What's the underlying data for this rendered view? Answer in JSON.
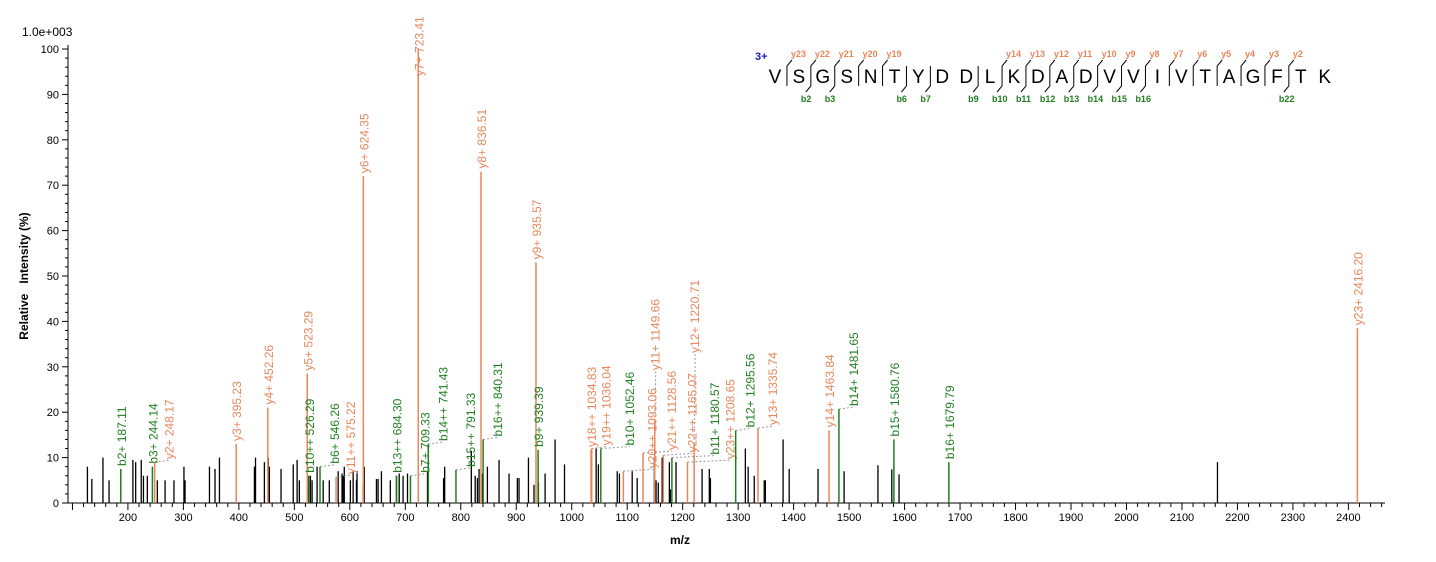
{
  "chart_data": {
    "type": "bar",
    "title": "",
    "scale_label": "1.0e+003",
    "xlabel": "m/z",
    "ylabel": "Relative   Intensity (%)",
    "xlim": [
      92,
      2466
    ],
    "ylim": [
      0,
      100
    ],
    "x_ticks": [
      200,
      300,
      400,
      500,
      600,
      700,
      800,
      900,
      1000,
      1100,
      1200,
      1300,
      1400,
      1500,
      1600,
      1700,
      1800,
      1900,
      2000,
      2100,
      2200,
      2300,
      2400
    ],
    "y_ticks": [
      0,
      10,
      20,
      30,
      40,
      50,
      60,
      70,
      80,
      90,
      100
    ],
    "grid": false,
    "colors": {
      "y_ion": "#e8865a",
      "b_ion": "#1f7f1f",
      "unassigned": "#000000",
      "charge": "#1a1acc"
    },
    "annotated_peaks": [
      {
        "mz": 187.11,
        "intensity": 7.5,
        "type": "b",
        "label": "b2+ 187.11"
      },
      {
        "mz": 244.14,
        "intensity": 8,
        "type": "b",
        "label": "b3+ 244.14"
      },
      {
        "mz": 248.17,
        "intensity": 9,
        "type": "y",
        "label": "y2+ 248.17"
      },
      {
        "mz": 395.23,
        "intensity": 13,
        "type": "y",
        "label": "y3+ 395.23"
      },
      {
        "mz": 452.26,
        "intensity": 21,
        "type": "y",
        "label": "y4+ 452.26"
      },
      {
        "mz": 523.29,
        "intensity": 28.5,
        "type": "y",
        "label": "y5+ 523.29"
      },
      {
        "mz": 526.29,
        "intensity": 6,
        "type": "b",
        "label": "b10++ 526.29"
      },
      {
        "mz": 546.26,
        "intensity": 8,
        "type": "b",
        "label": "b6+ 546.26"
      },
      {
        "mz": 575.22,
        "intensity": 5.7,
        "type": "y",
        "label": "y11++ 575.22"
      },
      {
        "mz": 624.35,
        "intensity": 72,
        "type": "y",
        "label": "y6+ 624.35"
      },
      {
        "mz": 684.3,
        "intensity": 6,
        "type": "b",
        "label": "b13++ 684.30"
      },
      {
        "mz": 709.33,
        "intensity": 6,
        "type": "b",
        "label": "b7+ 709.33"
      },
      {
        "mz": 723.41,
        "intensity": 100,
        "type": "y",
        "label": "y7+ 723.41"
      },
      {
        "mz": 741.43,
        "intensity": 13,
        "type": "b",
        "label": "b14++ 741.43"
      },
      {
        "mz": 791.33,
        "intensity": 7.3,
        "type": "b",
        "label": "b15++ 791.33"
      },
      {
        "mz": 836.51,
        "intensity": 73,
        "type": "y",
        "label": "y8+ 836.51"
      },
      {
        "mz": 840.31,
        "intensity": 14,
        "type": "b",
        "label": "b16++ 840.31"
      },
      {
        "mz": 935.57,
        "intensity": 53,
        "type": "y",
        "label": "y9+ 935.57"
      },
      {
        "mz": 939.39,
        "intensity": 11.7,
        "type": "b",
        "label": "b9+ 939.39"
      },
      {
        "mz": 1034.83,
        "intensity": 11.7,
        "type": "y",
        "label": "y18++ 1034.83"
      },
      {
        "mz": 1036.04,
        "intensity": 12,
        "type": "y",
        "label": "y19++ 1036.04"
      },
      {
        "mz": 1052.46,
        "intensity": 12,
        "type": "b",
        "label": "b10+ 1052.46"
      },
      {
        "mz": 1093.06,
        "intensity": 7,
        "type": "y",
        "label": "y20++ 1093.06"
      },
      {
        "mz": 1128.56,
        "intensity": 11,
        "type": "y",
        "label": "y21++ 1128.56"
      },
      {
        "mz": 1149.66,
        "intensity": 18,
        "type": "y",
        "label": "y11+ 1149.66"
      },
      {
        "mz": 1165.07,
        "intensity": 10.5,
        "type": "y",
        "label": "y22++ 1165.07"
      },
      {
        "mz": 1180.57,
        "intensity": 10,
        "type": "b",
        "label": "b11+ 1180.57"
      },
      {
        "mz": 1208.65,
        "intensity": 9,
        "type": "y",
        "label": "y23++ 1208.65"
      },
      {
        "mz": 1220.71,
        "intensity": 13,
        "type": "y",
        "label": "y12+ 1220.71"
      },
      {
        "mz": 1295.56,
        "intensity": 16,
        "type": "b",
        "label": "b12+ 1295.56"
      },
      {
        "mz": 1335.74,
        "intensity": 16.5,
        "type": "y",
        "label": "y13+ 1335.74"
      },
      {
        "mz": 1463.84,
        "intensity": 16,
        "type": "y",
        "label": "y14+ 1463.84"
      },
      {
        "mz": 1481.65,
        "intensity": 20.7,
        "type": "b",
        "label": "b14+ 1481.65"
      },
      {
        "mz": 1580.76,
        "intensity": 14,
        "type": "b",
        "label": "b15+ 1580.76"
      },
      {
        "mz": 1679.79,
        "intensity": 9,
        "type": "b",
        "label": "b16+ 1679.79"
      },
      {
        "mz": 2416.2,
        "intensity": 38.5,
        "type": "y",
        "label": "y23+ 2416.20"
      }
    ],
    "unassigned_peaks": [
      [
        127,
        8
      ],
      [
        135,
        5.3
      ],
      [
        155,
        10
      ],
      [
        166,
        5
      ],
      [
        209,
        9.5
      ],
      [
        214,
        9
      ],
      [
        224,
        9.5
      ],
      [
        228,
        6
      ],
      [
        235,
        6
      ],
      [
        253,
        5
      ],
      [
        267,
        5
      ],
      [
        283,
        5
      ],
      [
        301,
        8
      ],
      [
        303,
        5
      ],
      [
        347,
        8
      ],
      [
        357,
        7.5
      ],
      [
        365,
        10
      ],
      [
        428,
        8
      ],
      [
        430,
        10
      ],
      [
        446,
        9
      ],
      [
        453,
        10
      ],
      [
        455,
        8
      ],
      [
        476,
        7.5
      ],
      [
        498,
        8.5
      ],
      [
        505,
        9.5
      ],
      [
        509,
        5
      ],
      [
        525,
        6
      ],
      [
        529,
        6
      ],
      [
        532,
        5
      ],
      [
        541,
        8
      ],
      [
        552,
        5
      ],
      [
        563,
        5
      ],
      [
        579,
        7
      ],
      [
        586,
        6.5
      ],
      [
        588,
        6
      ],
      [
        590,
        8
      ],
      [
        601,
        5
      ],
      [
        606,
        7
      ],
      [
        612,
        5
      ],
      [
        613,
        7
      ],
      [
        624,
        4
      ],
      [
        626,
        8
      ],
      [
        648,
        5.3
      ],
      [
        651,
        5.3
      ],
      [
        657,
        7
      ],
      [
        673,
        5
      ],
      [
        684,
        6
      ],
      [
        689,
        6.5
      ],
      [
        696,
        6
      ],
      [
        704,
        6.5
      ],
      [
        740,
        7
      ],
      [
        769,
        5.5
      ],
      [
        771,
        8
      ],
      [
        819,
        11.5
      ],
      [
        826,
        6
      ],
      [
        830,
        5.5
      ],
      [
        833,
        7.5
      ],
      [
        839,
        6.5
      ],
      [
        848,
        8
      ],
      [
        869,
        9.5
      ],
      [
        887,
        6.5
      ],
      [
        902,
        5.5
      ],
      [
        905,
        5.5
      ],
      [
        922,
        10
      ],
      [
        932,
        4
      ],
      [
        940,
        4.5
      ],
      [
        952,
        6.5
      ],
      [
        970,
        14
      ],
      [
        987,
        8.5
      ],
      [
        1044,
        12
      ],
      [
        1048,
        8.5
      ],
      [
        1082,
        7
      ],
      [
        1086,
        6.5
      ],
      [
        1109,
        7
      ],
      [
        1118,
        5.5
      ],
      [
        1149,
        10
      ],
      [
        1152,
        5
      ],
      [
        1156,
        4.5
      ],
      [
        1163,
        10
      ],
      [
        1176,
        9
      ],
      [
        1178,
        3
      ],
      [
        1188,
        9
      ],
      [
        1235,
        7.5
      ],
      [
        1248,
        7.5
      ],
      [
        1250,
        5.5
      ],
      [
        1313,
        12
      ],
      [
        1318,
        8
      ],
      [
        1329,
        6
      ],
      [
        1347,
        5
      ],
      [
        1349,
        5
      ],
      [
        1381,
        14
      ],
      [
        1392,
        7.5
      ],
      [
        1444,
        7.5
      ],
      [
        1491,
        7
      ],
      [
        1552,
        8.3
      ],
      [
        1577,
        7.4
      ],
      [
        1590,
        6.3
      ],
      [
        2164,
        9
      ]
    ]
  },
  "sequence": {
    "charge": "3+",
    "residues": [
      "V",
      "S",
      "G",
      "S",
      "N",
      "T",
      "Y",
      "D",
      "D",
      "L",
      "K",
      "D",
      "A",
      "D",
      "V",
      "V",
      "I",
      "V",
      "T",
      "A",
      "G",
      "F",
      "T",
      "K"
    ],
    "cleavages": [
      {
        "after": 1,
        "y": "y23",
        "b": ""
      },
      {
        "after": 2,
        "y": "y22",
        "b": "b2"
      },
      {
        "after": 3,
        "y": "y21",
        "b": "b3"
      },
      {
        "after": 4,
        "y": "y20",
        "b": ""
      },
      {
        "after": 5,
        "y": "y19",
        "b": ""
      },
      {
        "after": 6,
        "y": "",
        "b": "b6"
      },
      {
        "after": 7,
        "y": "",
        "b": "b7"
      },
      {
        "after": 9,
        "y": "",
        "b": "b9"
      },
      {
        "after": 10,
        "y": "y14",
        "b": "b10"
      },
      {
        "after": 11,
        "y": "y13",
        "b": "b11"
      },
      {
        "after": 12,
        "y": "y12",
        "b": "b12"
      },
      {
        "after": 13,
        "y": "y11",
        "b": "b13"
      },
      {
        "after": 14,
        "y": "y10",
        "b": "b14"
      },
      {
        "after": 15,
        "y": "y9",
        "b": "b15"
      },
      {
        "after": 16,
        "y": "y8",
        "b": "b16"
      },
      {
        "after": 17,
        "y": "y7",
        "b": ""
      },
      {
        "after": 18,
        "y": "y6",
        "b": ""
      },
      {
        "after": 19,
        "y": "y5",
        "b": ""
      },
      {
        "after": 20,
        "y": "y4",
        "b": ""
      },
      {
        "after": 21,
        "y": "y3",
        "b": ""
      },
      {
        "after": 22,
        "y": "y2",
        "b": "b22"
      }
    ]
  }
}
